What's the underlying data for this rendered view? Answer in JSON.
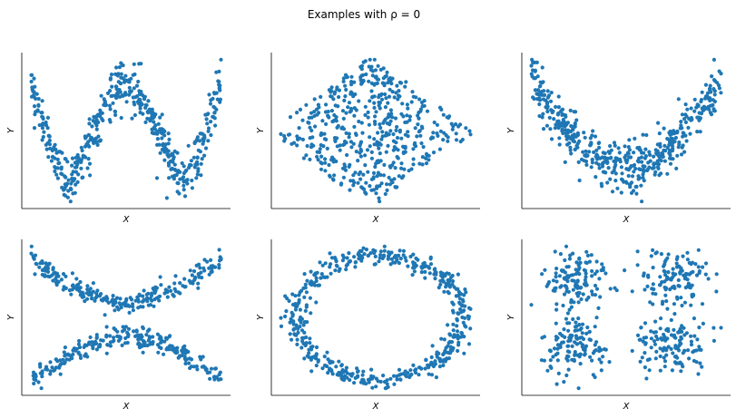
{
  "figure": {
    "title": "Examples with ρ = 0",
    "point_color": "#1f77b4"
  },
  "chart_data": [
    {
      "type": "scatter",
      "shape": "sine wave",
      "xlabel": "X",
      "ylabel": "Y",
      "grid": false,
      "ticks": false,
      "x": [
        0,
        0.1,
        0.2,
        0.3,
        0.4,
        0.5,
        0.6,
        0.7,
        0.8,
        0.9,
        1.0
      ],
      "y": [
        0.8,
        0.37,
        0.1,
        0.37,
        0.7,
        0.8,
        0.67,
        0.37,
        0.1,
        0.37,
        0.8
      ]
    },
    {
      "type": "scatter",
      "shape": "diamond (uniform)",
      "xlabel": "X",
      "ylabel": "Y",
      "grid": false,
      "ticks": false,
      "x": [
        0,
        0.25,
        0.5,
        0.75,
        1.0,
        0.75,
        0.5,
        0.25
      ],
      "y": [
        0.5,
        0.75,
        1.0,
        0.75,
        0.5,
        0.25,
        0.0,
        0.25
      ]
    },
    {
      "type": "scatter",
      "shape": "parabola (U)",
      "xlabel": "X",
      "ylabel": "Y",
      "grid": false,
      "ticks": false,
      "x": [
        0,
        0.1,
        0.2,
        0.3,
        0.4,
        0.5,
        0.6,
        0.7,
        0.8,
        0.9,
        1.0
      ],
      "y": [
        0.9,
        0.65,
        0.45,
        0.3,
        0.2,
        0.17,
        0.2,
        0.3,
        0.45,
        0.65,
        0.9
      ]
    },
    {
      "type": "scatter",
      "shape": "X (two parabolas)",
      "xlabel": "X",
      "ylabel": "Y",
      "grid": false,
      "ticks": false,
      "x": [
        0,
        0.25,
        0.5,
        0.75,
        1.0
      ],
      "y_upper": [
        0.92,
        0.7,
        0.6,
        0.7,
        0.92
      ],
      "y_lower": [
        0.08,
        0.3,
        0.4,
        0.3,
        0.08
      ]
    },
    {
      "type": "scatter",
      "shape": "ring",
      "xlabel": "X",
      "ylabel": "Y",
      "grid": false,
      "ticks": false,
      "center": [
        0.5,
        0.5
      ],
      "radius_x": 0.42,
      "radius_y": 0.38
    },
    {
      "type": "scatter",
      "shape": "four clusters",
      "xlabel": "X",
      "ylabel": "Y",
      "grid": false,
      "ticks": false,
      "clusters": [
        {
          "x": 0.25,
          "y": 0.7
        },
        {
          "x": 0.75,
          "y": 0.7
        },
        {
          "x": 0.25,
          "y": 0.3
        },
        {
          "x": 0.75,
          "y": 0.3
        }
      ]
    }
  ]
}
